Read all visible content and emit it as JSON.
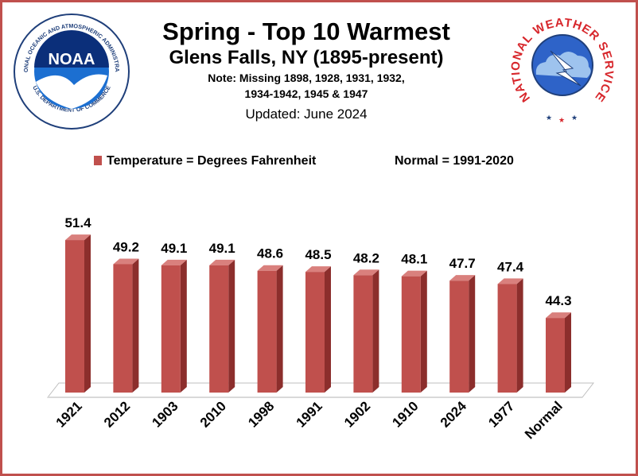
{
  "header": {
    "title": "Spring - Top 10 Warmest",
    "subtitle": "Glens Falls, NY (1895-present)",
    "note_line1": "Note: Missing 1898, 1928, 1931, 1932,",
    "note_line2": "1934-1942, 1945 & 1947",
    "updated": "Updated: June 2024"
  },
  "logos": {
    "noaa_text": "NOAA",
    "noaa_ring": "NATIONAL OCEANIC AND ATMOSPHERIC ADMINISTRATION",
    "noaa_dept": "U.S. DEPARTMENT OF COMMERCE",
    "nws_ring": "NATIONAL WEATHER SERVICE"
  },
  "legend": {
    "series_label": "Temperature = Degrees Fahrenheit",
    "normal_label": "Normal = 1991-2020"
  },
  "colors": {
    "bar": "#c0504d",
    "frame": "#c0504d"
  },
  "chart_data": {
    "type": "bar",
    "title": "Spring - Top 10 Warmest",
    "categories": [
      "1921",
      "2012",
      "1903",
      "2010",
      "1998",
      "1991",
      "1902",
      "1910",
      "2024",
      "1977",
      "Normal"
    ],
    "series": [
      {
        "name": "Temperature = Degrees Fahrenheit",
        "values": [
          51.4,
          49.2,
          49.1,
          49.1,
          48.6,
          48.5,
          48.2,
          48.1,
          47.7,
          47.4,
          44.3
        ]
      }
    ],
    "ylim": [
      37.5,
      53
    ],
    "grid": false,
    "legend_position": "top"
  }
}
